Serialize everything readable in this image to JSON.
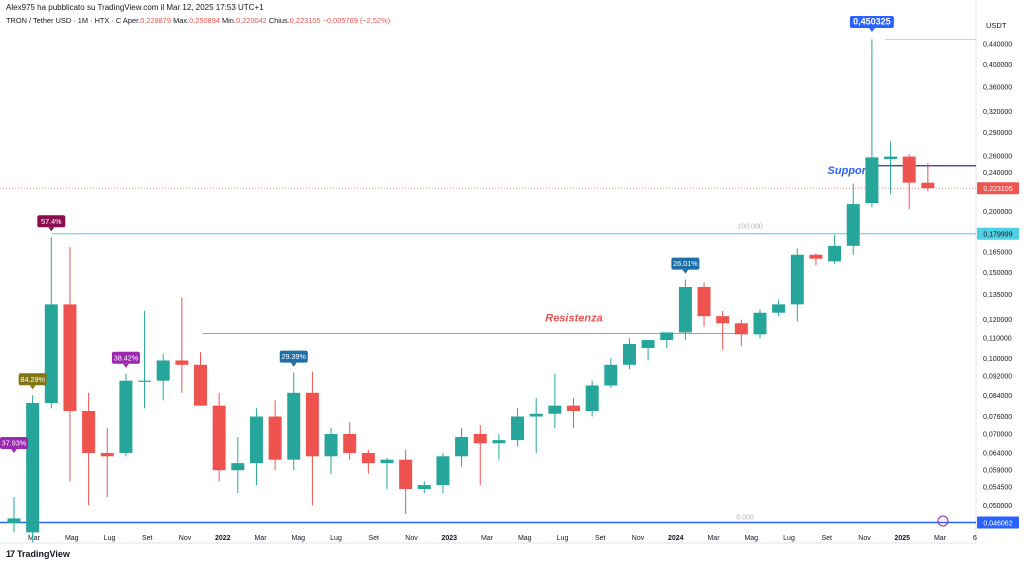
{
  "header": {
    "published_line": "Alex975 ha pubblicato su TradingView.com il Mar 12, 2025 17:53 UTC+1",
    "symbol_line": "TRON / Tether USD · 1M · HTX · C",
    "open_label": "Aper.",
    "open_value": "0,228879",
    "high_label": "Max.",
    "high_value": "0,250894",
    "low_label": "Min.",
    "low_value": "0,220042",
    "close_label": "Chius.",
    "close_value": "0,223105",
    "change_value": "−0,005769 (−2,52%)"
  },
  "footer": {
    "brand": "TradingView",
    "logo_glyph": "17"
  },
  "colors": {
    "up": "#26a69a",
    "down": "#ef5350",
    "price_tag": "#ef5350",
    "blue": "#2962ff",
    "fib_line": "#4dd0e1",
    "resist_line": "#ef5350"
  },
  "chart_data": {
    "type": "candlestick",
    "currency_label": "USDT",
    "y_scale": "log",
    "ylim": [
      0.0445,
      0.475
    ],
    "y_ticks": [
      "0,440000",
      "0,400000",
      "0,360000",
      "0,320000",
      "0,290000",
      "0,260000",
      "0,240000",
      "0,200000",
      "0,165000",
      "0,150000",
      "0,135000",
      "0,120000",
      "0,110000",
      "0,100000",
      "0,092000",
      "0,084000",
      "0,076000",
      "0,070000",
      "0,064000",
      "0,059000",
      "0,054500",
      "0,050000"
    ],
    "y_tick_values": [
      0.44,
      0.4,
      0.36,
      0.32,
      0.29,
      0.26,
      0.24,
      0.2,
      0.165,
      0.15,
      0.135,
      0.12,
      0.11,
      0.1,
      0.092,
      0.084,
      0.076,
      0.07,
      0.064,
      0.059,
      0.0545,
      0.05
    ],
    "x_labels": [
      "Mar",
      "Mag",
      "Lug",
      "Set",
      "Nov",
      "2022",
      "Mar",
      "Mag",
      "Lug",
      "Set",
      "Nov",
      "2023",
      "Mar",
      "Mag",
      "Lug",
      "Set",
      "Nov",
      "2024",
      "Mar",
      "Mag",
      "Lug",
      "Set",
      "Nov",
      "2025",
      "Mar",
      "6"
    ],
    "bold_x_labels": [
      "2022",
      "2023",
      "2024",
      "2025"
    ],
    "candles": [
      {
        "o": 0.046,
        "h": 0.052,
        "l": 0.044,
        "c": 0.047
      },
      {
        "o": 0.044,
        "h": 0.084,
        "l": 0.042,
        "c": 0.081
      },
      {
        "o": 0.081,
        "h": 0.177,
        "l": 0.079,
        "c": 0.129
      },
      {
        "o": 0.129,
        "h": 0.169,
        "l": 0.056,
        "c": 0.078
      },
      {
        "o": 0.078,
        "h": 0.085,
        "l": 0.05,
        "c": 0.064
      },
      {
        "o": 0.064,
        "h": 0.072,
        "l": 0.052,
        "c": 0.063
      },
      {
        "o": 0.064,
        "h": 0.093,
        "l": 0.063,
        "c": 0.09
      },
      {
        "o": 0.09,
        "h": 0.125,
        "l": 0.079,
        "c": 0.09
      },
      {
        "o": 0.09,
        "h": 0.102,
        "l": 0.082,
        "c": 0.099
      },
      {
        "o": 0.099,
        "h": 0.133,
        "l": 0.085,
        "c": 0.097
      },
      {
        "o": 0.097,
        "h": 0.103,
        "l": 0.08,
        "c": 0.08
      },
      {
        "o": 0.08,
        "h": 0.085,
        "l": 0.056,
        "c": 0.059
      },
      {
        "o": 0.059,
        "h": 0.069,
        "l": 0.053,
        "c": 0.061
      },
      {
        "o": 0.061,
        "h": 0.079,
        "l": 0.055,
        "c": 0.076
      },
      {
        "o": 0.076,
        "h": 0.082,
        "l": 0.059,
        "c": 0.062
      },
      {
        "o": 0.062,
        "h": 0.0935,
        "l": 0.059,
        "c": 0.085
      },
      {
        "o": 0.085,
        "h": 0.094,
        "l": 0.05,
        "c": 0.063
      },
      {
        "o": 0.063,
        "h": 0.072,
        "l": 0.058,
        "c": 0.07
      },
      {
        "o": 0.07,
        "h": 0.074,
        "l": 0.062,
        "c": 0.064
      },
      {
        "o": 0.064,
        "h": 0.065,
        "l": 0.058,
        "c": 0.061
      },
      {
        "o": 0.061,
        "h": 0.0625,
        "l": 0.054,
        "c": 0.062
      },
      {
        "o": 0.062,
        "h": 0.065,
        "l": 0.048,
        "c": 0.054
      },
      {
        "o": 0.054,
        "h": 0.056,
        "l": 0.053,
        "c": 0.055
      },
      {
        "o": 0.055,
        "h": 0.064,
        "l": 0.053,
        "c": 0.063
      },
      {
        "o": 0.063,
        "h": 0.072,
        "l": 0.06,
        "c": 0.069
      },
      {
        "o": 0.07,
        "h": 0.073,
        "l": 0.055,
        "c": 0.067
      },
      {
        "o": 0.067,
        "h": 0.07,
        "l": 0.062,
        "c": 0.068
      },
      {
        "o": 0.068,
        "h": 0.079,
        "l": 0.066,
        "c": 0.076
      },
      {
        "o": 0.076,
        "h": 0.083,
        "l": 0.064,
        "c": 0.077
      },
      {
        "o": 0.077,
        "h": 0.093,
        "l": 0.072,
        "c": 0.08
      },
      {
        "o": 0.08,
        "h": 0.083,
        "l": 0.072,
        "c": 0.078
      },
      {
        "o": 0.078,
        "h": 0.09,
        "l": 0.076,
        "c": 0.088
      },
      {
        "o": 0.088,
        "h": 0.1,
        "l": 0.087,
        "c": 0.097
      },
      {
        "o": 0.097,
        "h": 0.11,
        "l": 0.095,
        "c": 0.107
      },
      {
        "o": 0.105,
        "h": 0.109,
        "l": 0.099,
        "c": 0.109
      },
      {
        "o": 0.109,
        "h": 0.113,
        "l": 0.105,
        "c": 0.113
      },
      {
        "o": 0.113,
        "h": 0.145,
        "l": 0.109,
        "c": 0.14
      },
      {
        "o": 0.14,
        "h": 0.143,
        "l": 0.116,
        "c": 0.122
      },
      {
        "o": 0.122,
        "h": 0.125,
        "l": 0.104,
        "c": 0.118
      },
      {
        "o": 0.118,
        "h": 0.12,
        "l": 0.106,
        "c": 0.112
      },
      {
        "o": 0.112,
        "h": 0.126,
        "l": 0.11,
        "c": 0.124
      },
      {
        "o": 0.124,
        "h": 0.132,
        "l": 0.122,
        "c": 0.129
      },
      {
        "o": 0.129,
        "h": 0.168,
        "l": 0.119,
        "c": 0.163
      },
      {
        "o": 0.163,
        "h": 0.164,
        "l": 0.155,
        "c": 0.16
      },
      {
        "o": 0.158,
        "h": 0.179,
        "l": 0.156,
        "c": 0.17
      },
      {
        "o": 0.17,
        "h": 0.228,
        "l": 0.163,
        "c": 0.207
      },
      {
        "o": 0.208,
        "h": 0.4503,
        "l": 0.204,
        "c": 0.258
      },
      {
        "o": 0.256,
        "h": 0.278,
        "l": 0.217,
        "c": 0.259
      },
      {
        "o": 0.259,
        "h": 0.262,
        "l": 0.202,
        "c": 0.229
      },
      {
        "o": 0.229,
        "h": 0.251,
        "l": 0.22,
        "c": 0.2231
      }
    ],
    "labels": [
      {
        "text": "37.93%",
        "candle": 0,
        "color": "#9c27b0",
        "pos": "below"
      },
      {
        "text": "84.29%",
        "candle": 1,
        "color": "#827717",
        "pos": "above"
      },
      {
        "text": "57.4%",
        "candle": 2,
        "color": "#880e4f",
        "pos": "above"
      },
      {
        "text": "38.42%",
        "candle": 6,
        "color": "#9c27b0",
        "pos": "above"
      },
      {
        "text": "29.39%",
        "candle": 15,
        "color": "#1e6fa8",
        "pos": "above"
      },
      {
        "text": "26.01%",
        "candle": 36,
        "color": "#1e6fa8",
        "pos": "above"
      },
      {
        "text": "0,450325",
        "candle": 46,
        "color": "#2962ff",
        "pos": "top"
      }
    ],
    "price_tags": [
      {
        "text": "0,223105",
        "value": 0.2231,
        "color": "#ef5350"
      },
      {
        "text": "0,179999",
        "value": 0.18,
        "color": "#4dd0e1",
        "text_color": "#131722"
      },
      {
        "text": "0,046062",
        "value": 0.0461,
        "color": "#2962ff"
      }
    ],
    "annotations": {
      "resistance_label": "Resistenza",
      "resistance_level": 0.1125,
      "support_label": "Supporto",
      "support_level": 0.248,
      "fib_top_label": "100.000",
      "fib_top_level": 0.18,
      "fib_mid_label": "50",
      "fib_bottom_label": "0.000",
      "fib_bottom_level": 0.0461,
      "ath_level": 0.4503
    }
  }
}
